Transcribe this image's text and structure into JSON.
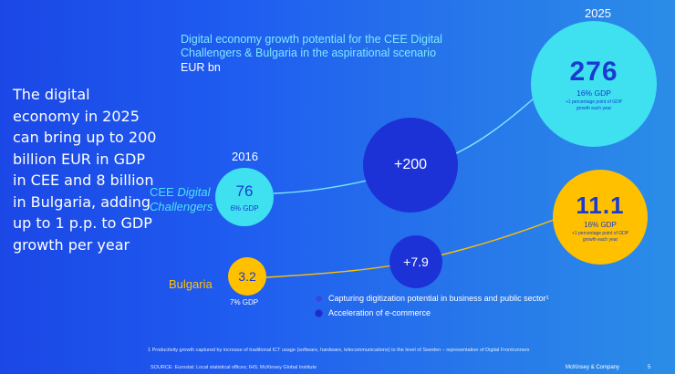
{
  "headline": "The digital economy in 2025 can bring up to 200 billion EUR in GDP in CEE and 8 billion in Bulgaria, adding up to 1 p.p. to GDP growth per year",
  "chart": {
    "title_line1": "Digital economy growth potential for the CEE Digital",
    "title_line2": "Challengers & Bulgaria in the aspirational scenario",
    "unit": "EUR bn",
    "year_start": "2016",
    "year_end": "2025"
  },
  "cee": {
    "label_line1_prefix": "CEE ",
    "label_line1_italic": "Digital",
    "label_line2": "Challengers",
    "value_2016": "76",
    "gdp_2016": "6% GDP",
    "growth": "+200",
    "value_2025": "276",
    "gdp_2025": "16% GDP",
    "growth_note": "+1 percentage point of GDP growth each year"
  },
  "bulgaria": {
    "label": "Bulgaria",
    "value_2016": "3.2",
    "gdp_2016": "7% GDP",
    "growth": "+7.9",
    "value_2025": "11.1",
    "gdp_2025": "16% GDP",
    "growth_note": "+1 percentage point of GDP growth each year"
  },
  "legend": [
    {
      "label": "Capturing digitization potential in business and public sector¹",
      "color": "#2c4de0"
    },
    {
      "label": "Acceleration of e-commerce",
      "color": "#1a2ecc"
    }
  ],
  "footnote": "1 Productivity growth captured by increase of traditional ICT usage (software, hardware, telecommunications) to the level of Sweden – representation of Digital Frontrunners",
  "source": "SOURCE: Eurostat; Local statistical offices; IHS; McKinsey Global Institute",
  "brand": "McKinsey & Company",
  "page_number": "5",
  "colors": {
    "cyan": "#3fe0f0",
    "gold": "#ffc000",
    "navy_circle": "#1d32d6"
  }
}
